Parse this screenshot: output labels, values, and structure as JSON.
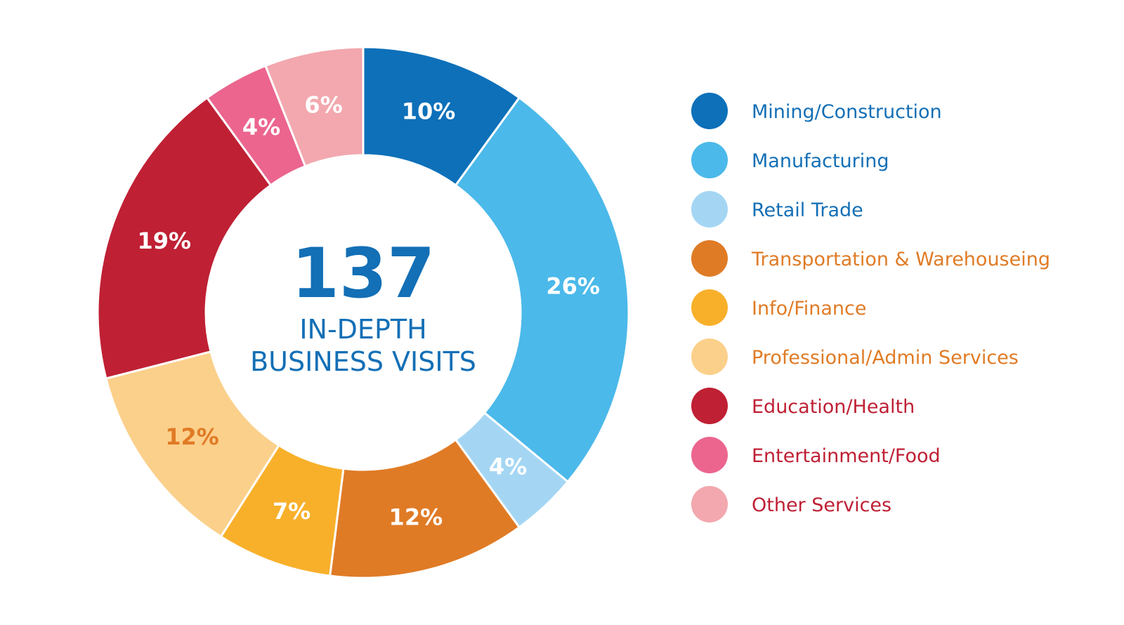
{
  "chart_data": {
    "type": "pie",
    "donut": true,
    "center": {
      "number": "137",
      "line1": "IN-DEPTH",
      "line2": "BUSINESS VISITS",
      "color": "#136fb6"
    },
    "slices": [
      {
        "name": "Mining/Construction",
        "value": 10,
        "label": "10%",
        "color": "#0d70b9",
        "label_color": "#ffffff",
        "legend_text_color": "#136fb6"
      },
      {
        "name": "Manufacturing",
        "value": 26,
        "label": "26%",
        "color": "#4bb9ea",
        "label_color": "#ffffff",
        "legend_text_color": "#136fb6"
      },
      {
        "name": "Retail Trade",
        "value": 4,
        "label": "4%",
        "color": "#a4d6f3",
        "label_color": "#ffffff",
        "legend_text_color": "#136fb6"
      },
      {
        "name": "Transportation & Warehouseing",
        "value": 12,
        "label": "12%",
        "color": "#e07b25",
        "label_color": "#ffffff",
        "legend_text_color": "#e07b25"
      },
      {
        "name": "Info/Finance",
        "value": 7,
        "label": "7%",
        "color": "#f8b02b",
        "label_color": "#ffffff",
        "legend_text_color": "#e07b25"
      },
      {
        "name": "Professional/Admin Services",
        "value": 12,
        "label": "12%",
        "color": "#fbd08b",
        "label_color": "#e07b25",
        "legend_text_color": "#e07b25"
      },
      {
        "name": "Education/Health",
        "value": 19,
        "label": "19%",
        "color": "#bf2034",
        "label_color": "#ffffff",
        "legend_text_color": "#bf2034"
      },
      {
        "name": "Entertainment/Food",
        "value": 4,
        "label": "4%",
        "color": "#eb658f",
        "label_color": "#ffffff",
        "legend_text_color": "#bf2034"
      },
      {
        "name": "Other Services",
        "value": 6,
        "label": "6%",
        "color": "#f2a8ae",
        "label_color": "#ffffff",
        "legend_text_color": "#bf2034"
      }
    ],
    "legend": {
      "placement": "right"
    }
  }
}
